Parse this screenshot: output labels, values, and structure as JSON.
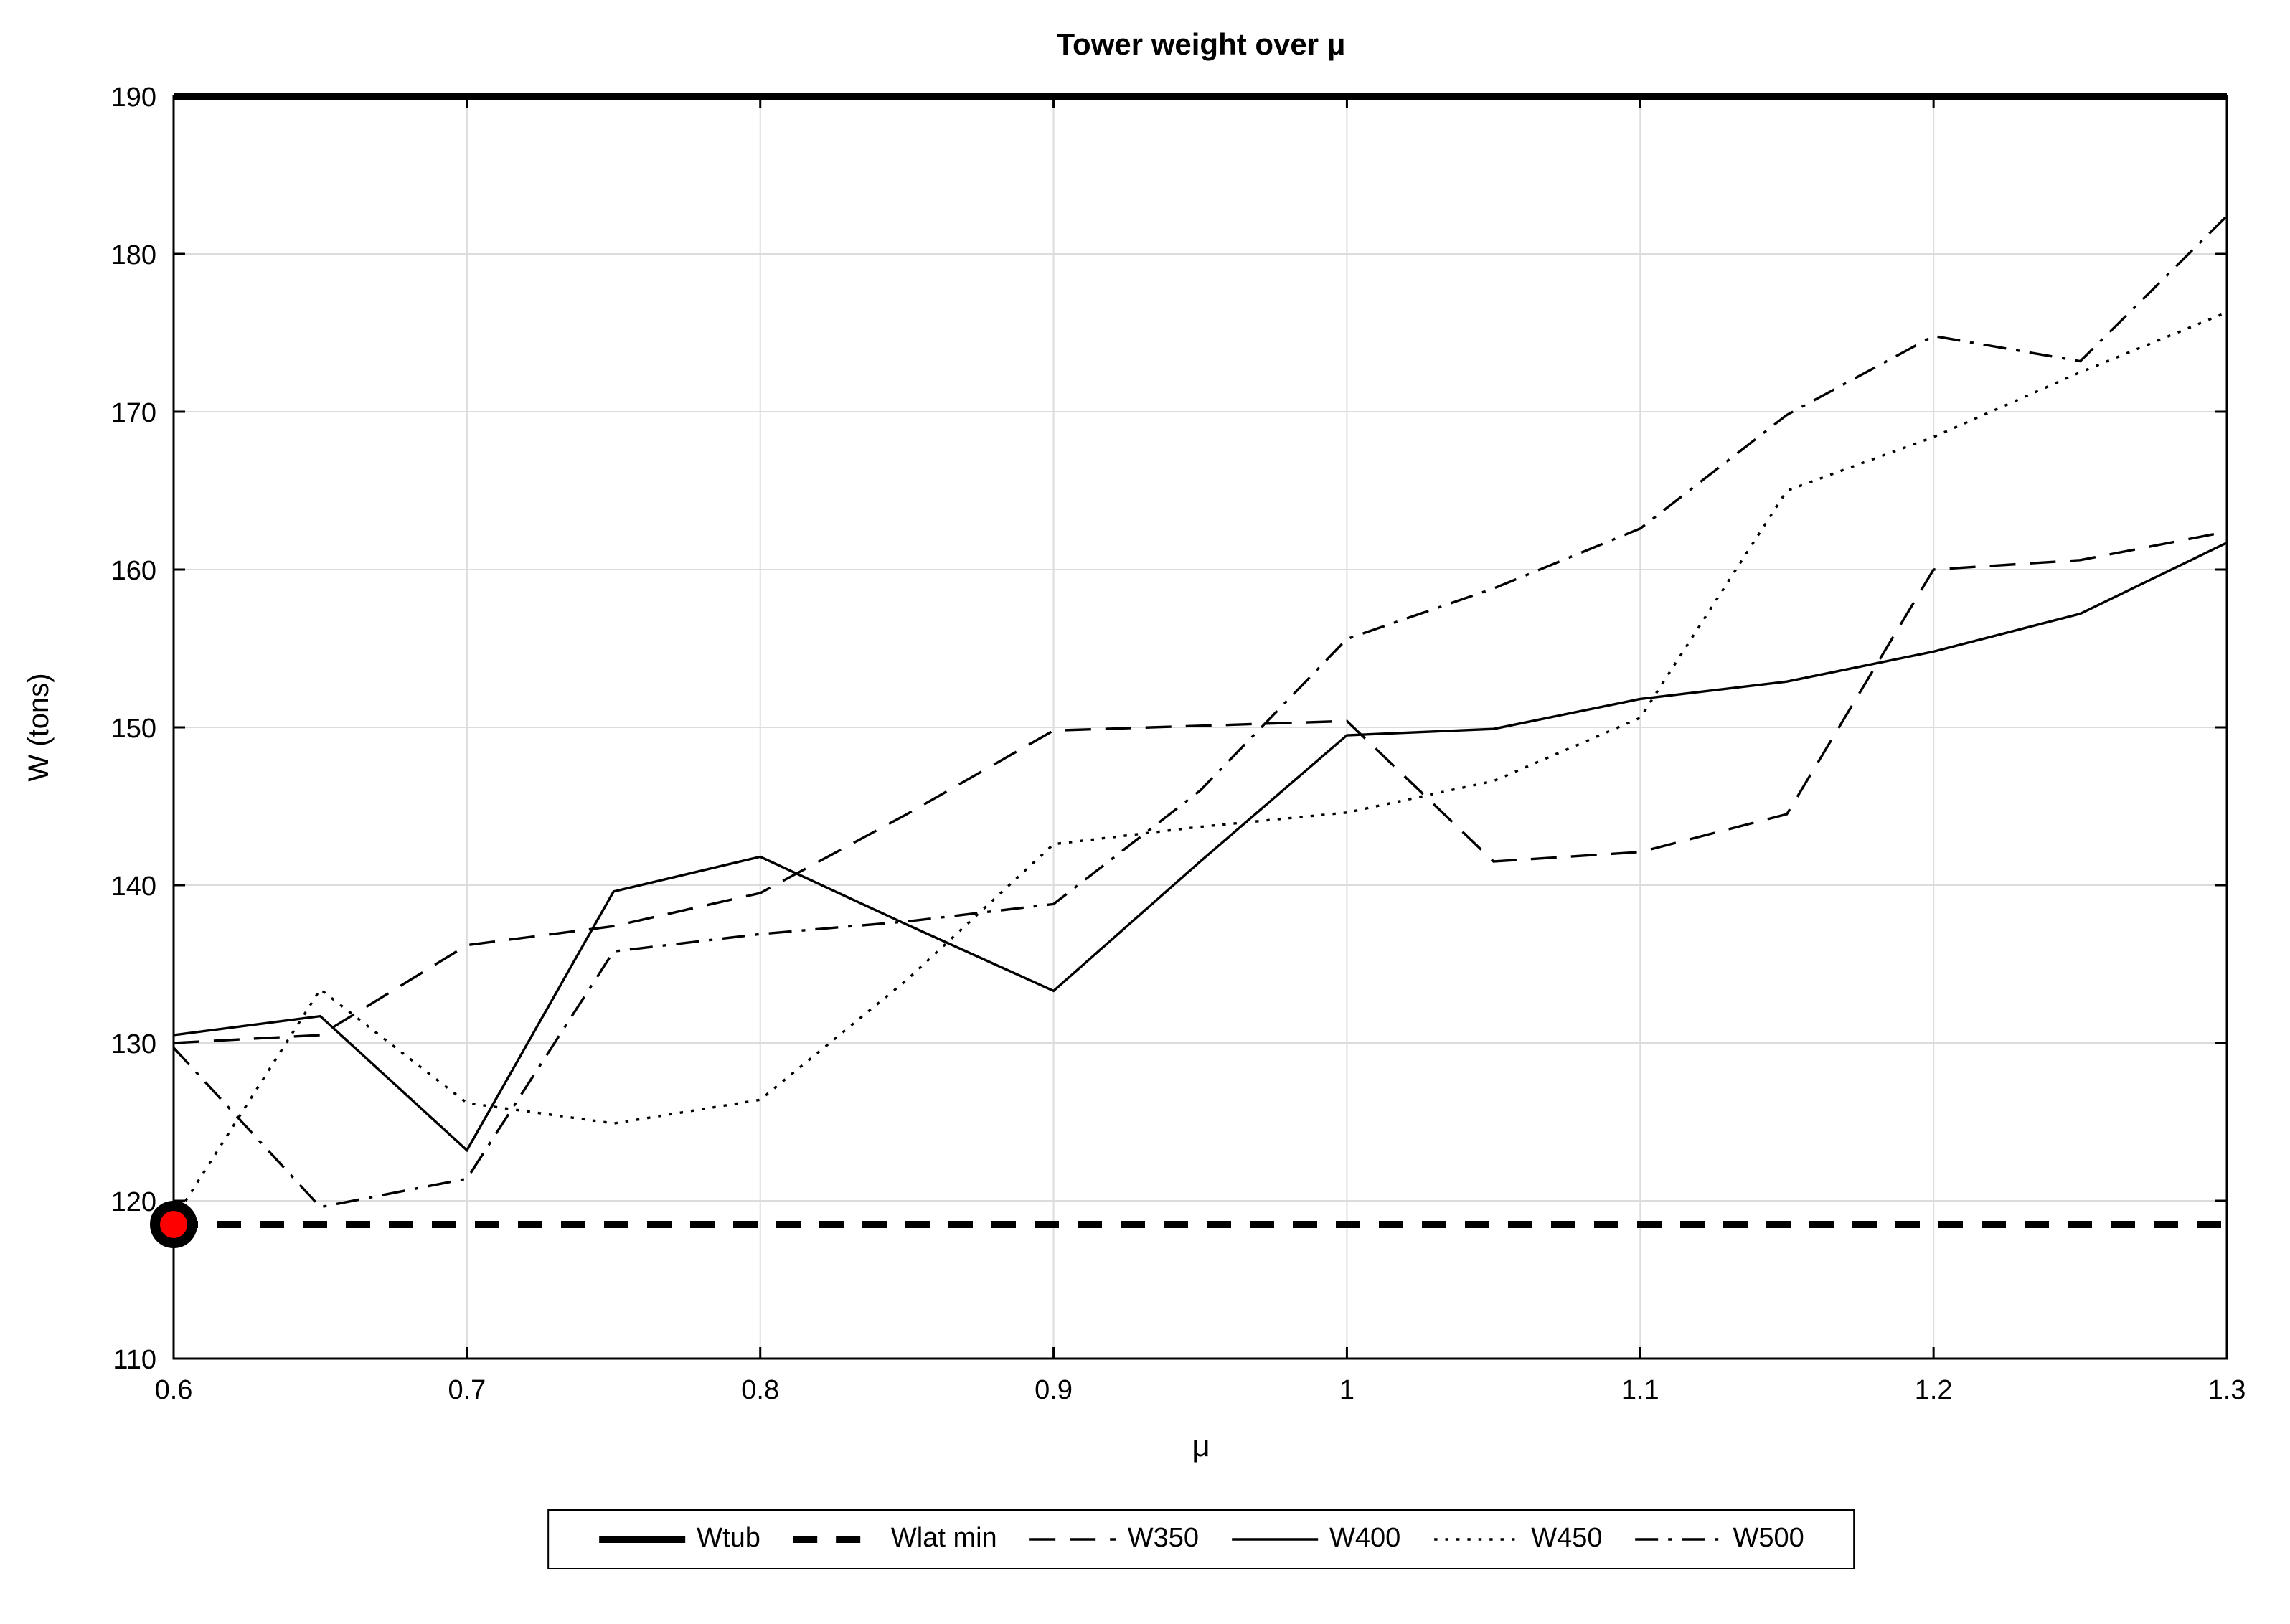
{
  "chart_data": {
    "type": "line",
    "title": "Tower weight over μ",
    "xlabel": "μ",
    "ylabel": "W (tons)",
    "xlim": [
      0.6,
      1.3
    ],
    "ylim": [
      110,
      190
    ],
    "xticks": [
      0.6,
      0.7,
      0.8,
      0.9,
      1,
      1.1,
      1.2,
      1.3
    ],
    "xtick_labels": [
      "0.6",
      "0.7",
      "0.8",
      "0.9",
      "1",
      "1.1",
      "1.2",
      "1.3"
    ],
    "yticks": [
      110,
      120,
      130,
      140,
      150,
      160,
      170,
      180,
      190
    ],
    "ytick_labels": [
      "110",
      "120",
      "130",
      "140",
      "150",
      "160",
      "170",
      "180",
      "190"
    ],
    "grid": true,
    "legend_position": "below-horizontal",
    "x": [
      0.6,
      0.65,
      0.7,
      0.75,
      0.8,
      0.85,
      0.9,
      0.95,
      1,
      1.05,
      1.1,
      1.15,
      1.2,
      1.25,
      1.3
    ],
    "series": [
      {
        "name": "Wtub",
        "style": "solid",
        "width": "thick",
        "values": [
          190,
          190,
          190,
          190,
          190,
          190,
          190,
          190,
          190,
          190,
          190,
          190,
          190,
          190,
          190
        ]
      },
      {
        "name": "Wlat min",
        "style": "dashed",
        "width": "thick",
        "values": [
          118.5,
          118.5,
          118.5,
          118.5,
          118.5,
          118.5,
          118.5,
          118.5,
          118.5,
          118.5,
          118.5,
          118.5,
          118.5,
          118.5,
          118.5
        ]
      },
      {
        "name": "W350",
        "style": "dashed",
        "width": "thin",
        "values": [
          130.0,
          130.5,
          136.2,
          137.4,
          139.5,
          144.5,
          149.8,
          150.1,
          150.4,
          141.5,
          142.1,
          144.5,
          160.0,
          160.6,
          162.4
        ]
      },
      {
        "name": "W400",
        "style": "solid",
        "width": "thin",
        "values": [
          130.5,
          131.7,
          123.2,
          139.6,
          141.8,
          137.5,
          133.3,
          141.5,
          149.5,
          149.9,
          151.8,
          152.9,
          154.8,
          157.2,
          161.7
        ]
      },
      {
        "name": "W450",
        "style": "dotted",
        "width": "thin",
        "values": [
          118.8,
          133.4,
          126.2,
          124.9,
          126.4,
          134.0,
          142.6,
          143.7,
          144.6,
          146.6,
          150.6,
          165.0,
          168.4,
          172.5,
          176.3
        ]
      },
      {
        "name": "W500",
        "style": "dashdot",
        "width": "thin",
        "values": [
          129.7,
          119.6,
          121.4,
          135.8,
          136.9,
          137.7,
          138.8,
          146.0,
          155.6,
          158.8,
          162.6,
          169.8,
          174.8,
          173.2,
          182.4
        ]
      }
    ],
    "marker": {
      "x": 0.6,
      "y": 118.5,
      "fill_color": "#ff0000",
      "edge_color": "#000000"
    },
    "colors": {
      "line": "#000000",
      "grid": "#dcdcdc",
      "background": "#ffffff",
      "marker_fill": "#ff0000"
    }
  }
}
